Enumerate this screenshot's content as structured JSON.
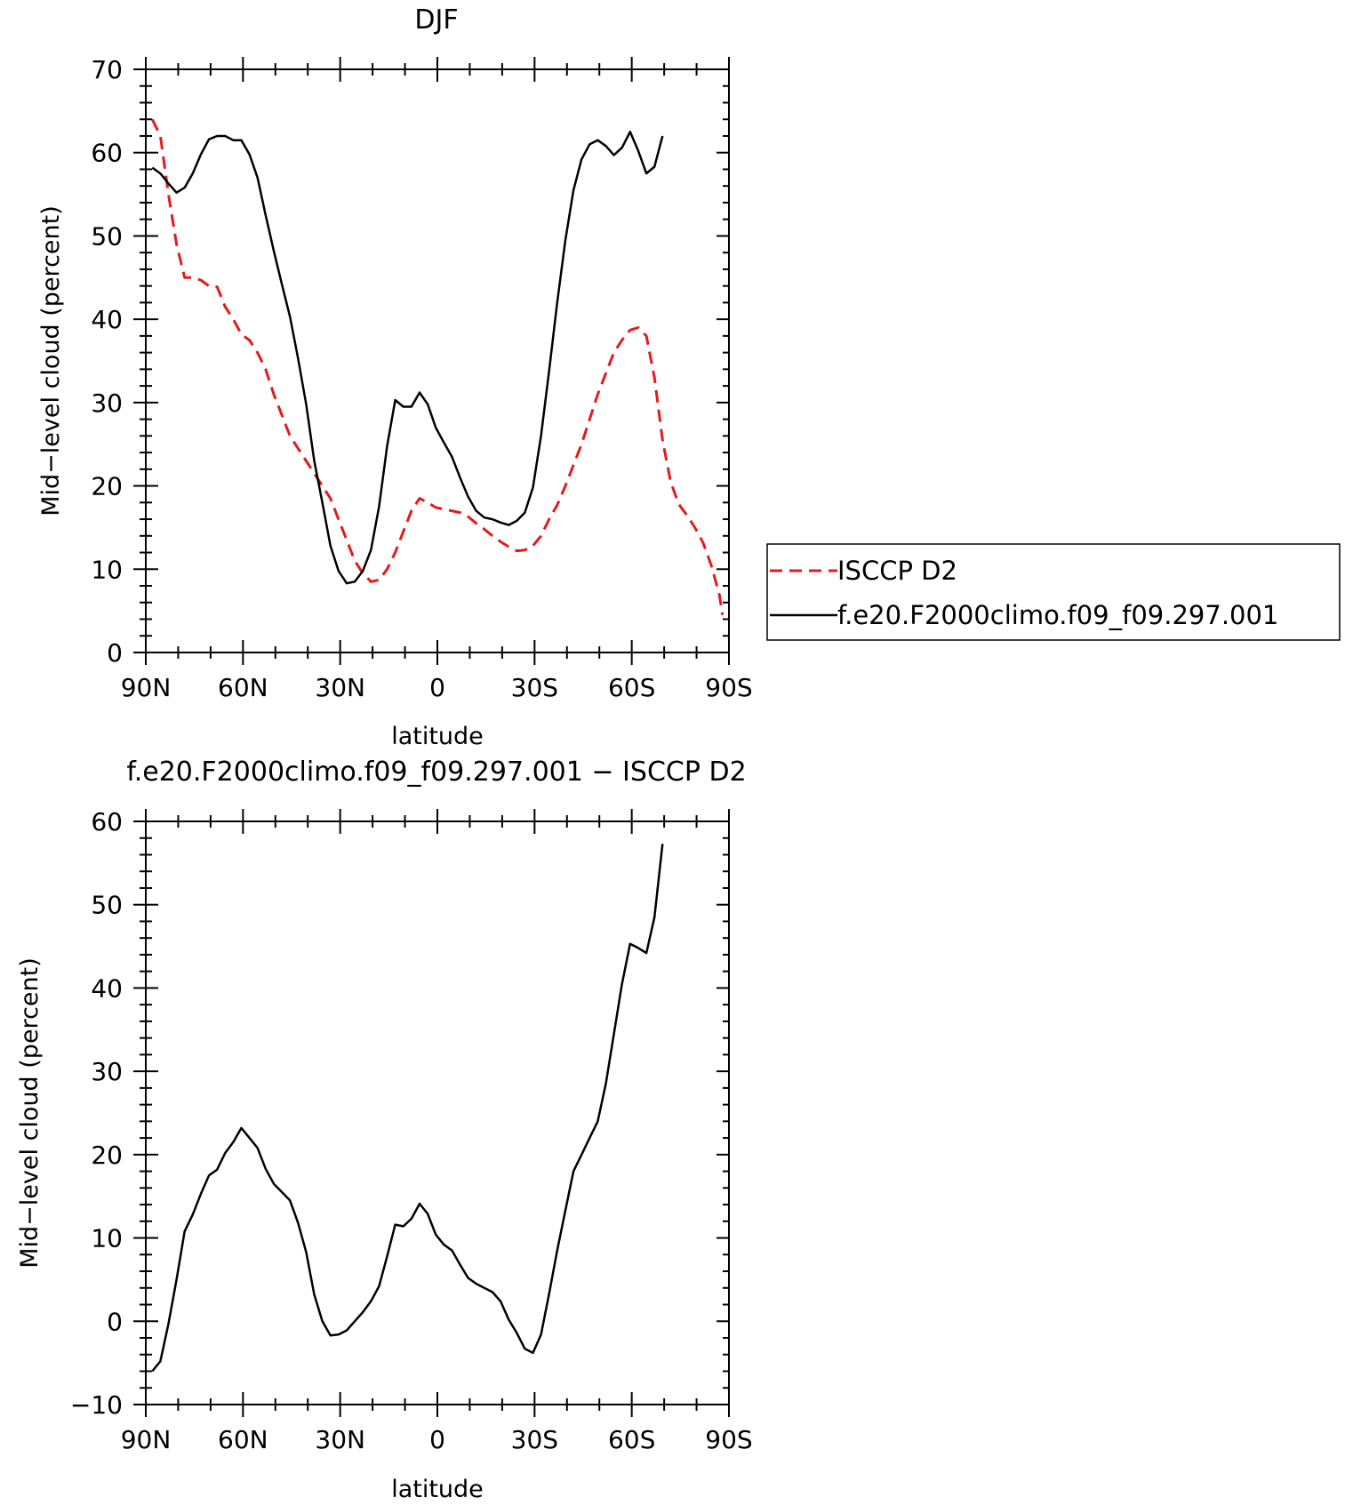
{
  "legend": {
    "entries": [
      {
        "label": "ISCCP D2",
        "color": "#e41a1c",
        "dash": true
      },
      {
        "label": "f.e20.F2000climo.f09_f09.297.001",
        "color": "#000000",
        "dash": false
      }
    ],
    "placement": "right"
  },
  "chart_data": [
    {
      "type": "line",
      "title": "DJF",
      "xlabel": "latitude",
      "ylabel": "Mid−level cloud (percent)",
      "xlim": [
        90,
        -90
      ],
      "ylim": [
        0,
        70
      ],
      "xticks": [
        90,
        60,
        30,
        0,
        -30,
        -60,
        -90
      ],
      "xtick_labels": [
        "90N",
        "60N",
        "30N",
        "0",
        "30S",
        "60S",
        "90S"
      ],
      "yticks": [
        0,
        10,
        20,
        30,
        40,
        50,
        60,
        70
      ],
      "ytick_labels": [
        "0",
        "10",
        "20",
        "30",
        "40",
        "50",
        "60",
        "70"
      ],
      "grid": false,
      "series": [
        {
          "name": "ISCCP D2",
          "color": "#e41a1c",
          "dash": true,
          "points": [
            [
              88,
              64
            ],
            [
              85.5,
              62
            ],
            [
              83,
              55
            ],
            [
              80.5,
              49
            ],
            [
              78,
              45
            ],
            [
              75.5,
              45
            ],
            [
              73,
              44.7
            ],
            [
              70.5,
              44
            ],
            [
              68,
              43.9
            ],
            [
              65.5,
              41.5
            ],
            [
              63,
              40
            ],
            [
              60.5,
              38.2
            ],
            [
              58,
              37.5
            ],
            [
              55.5,
              36
            ],
            [
              53,
              34
            ],
            [
              50.5,
              31
            ],
            [
              48,
              28.5
            ],
            [
              45.5,
              26
            ],
            [
              43,
              24.5
            ],
            [
              40.5,
              23
            ],
            [
              38,
              21.5
            ],
            [
              35.5,
              20
            ],
            [
              33,
              18.5
            ],
            [
              30.5,
              16
            ],
            [
              28,
              13.5
            ],
            [
              25.5,
              11
            ],
            [
              23,
              9.5
            ],
            [
              20.5,
              8.5
            ],
            [
              18,
              8.7
            ],
            [
              15.5,
              10
            ],
            [
              13,
              12
            ],
            [
              10.5,
              14.5
            ],
            [
              8,
              17
            ],
            [
              5.5,
              18.5
            ],
            [
              3,
              18
            ],
            [
              0.5,
              17.4
            ],
            [
              -2,
              17.2
            ],
            [
              -4.5,
              17
            ],
            [
              -7,
              16.8
            ],
            [
              -9.5,
              16.3
            ],
            [
              -12,
              15.5
            ],
            [
              -14.5,
              14.8
            ],
            [
              -17,
              14
            ],
            [
              -19.5,
              13.3
            ],
            [
              -22,
              12.7
            ],
            [
              -24.5,
              12.2
            ],
            [
              -27,
              12.3
            ],
            [
              -29.5,
              12.8
            ],
            [
              -32,
              14
            ],
            [
              -34.5,
              16
            ],
            [
              -37,
              17.7
            ],
            [
              -39.5,
              20
            ],
            [
              -42,
              22.5
            ],
            [
              -44.5,
              25
            ],
            [
              -47,
              28
            ],
            [
              -49.5,
              31
            ],
            [
              -52,
              33.5
            ],
            [
              -54.5,
              36
            ],
            [
              -57,
              37.5
            ],
            [
              -59.5,
              38.7
            ],
            [
              -62,
              39
            ],
            [
              -64.5,
              38
            ],
            [
              -67,
              33
            ],
            [
              -69.5,
              25.5
            ],
            [
              -72,
              20.5
            ],
            [
              -74.5,
              17.8
            ],
            [
              -77,
              16.5
            ],
            [
              -79.5,
              15
            ],
            [
              -82,
              13.2
            ],
            [
              -84.5,
              10.5
            ],
            [
              -87,
              7
            ],
            [
              -88,
              4.5
            ]
          ]
        },
        {
          "name": "f.e20.F2000climo.f09_f09.297.001",
          "color": "#000000",
          "dash": false,
          "points": [
            [
              88,
              58.2
            ],
            [
              85.5,
              57.5
            ],
            [
              83,
              56.3
            ],
            [
              80.5,
              55.2
            ],
            [
              78,
              55.8
            ],
            [
              75.5,
              57.5
            ],
            [
              73,
              59.8
            ],
            [
              70.5,
              61.6
            ],
            [
              68,
              62
            ],
            [
              65.5,
              62
            ],
            [
              63,
              61.5
            ],
            [
              60.5,
              61.5
            ],
            [
              58,
              59.8
            ],
            [
              55.5,
              57
            ],
            [
              53,
              52.5
            ],
            [
              50.5,
              48.2
            ],
            [
              48,
              44.2
            ],
            [
              45.5,
              40.3
            ],
            [
              43,
              35.3
            ],
            [
              40.5,
              29.8
            ],
            [
              38,
              23
            ],
            [
              35.5,
              18
            ],
            [
              33,
              12.8
            ],
            [
              30.5,
              9.8
            ],
            [
              28,
              8.3
            ],
            [
              25.5,
              8.5
            ],
            [
              23,
              9.8
            ],
            [
              20.5,
              12.3
            ],
            [
              18,
              17.5
            ],
            [
              15.5,
              24.8
            ],
            [
              13,
              30.3
            ],
            [
              10.5,
              29.5
            ],
            [
              8,
              29.5
            ],
            [
              5.5,
              31.2
            ],
            [
              3,
              29.8
            ],
            [
              0.5,
              27
            ],
            [
              -2,
              25.2
            ],
            [
              -4.5,
              23.5
            ],
            [
              -7,
              21
            ],
            [
              -9.5,
              18.7
            ],
            [
              -12,
              17
            ],
            [
              -14.5,
              16.2
            ],
            [
              -17,
              16
            ],
            [
              -19.5,
              15.6
            ],
            [
              -22,
              15.3
            ],
            [
              -24.5,
              15.8
            ],
            [
              -27,
              16.8
            ],
            [
              -29.5,
              19.8
            ],
            [
              -32,
              26
            ],
            [
              -34.5,
              33.8
            ],
            [
              -37,
              42
            ],
            [
              -39.5,
              49.5
            ],
            [
              -42,
              55.5
            ],
            [
              -44.5,
              59.2
            ],
            [
              -47,
              61
            ],
            [
              -49.5,
              61.5
            ],
            [
              -52,
              60.8
            ],
            [
              -54.5,
              59.7
            ],
            [
              -57,
              60.6
            ],
            [
              -59.5,
              62.5
            ],
            [
              -62,
              60.2
            ],
            [
              -64.5,
              57.5
            ],
            [
              -67,
              58.3
            ],
            [
              -69.5,
              62
            ]
          ]
        }
      ]
    },
    {
      "type": "line",
      "title": "f.e20.F2000climo.f09_f09.297.001 − ISCCP D2",
      "xlabel": "latitude",
      "ylabel": "Mid−level cloud (percent)",
      "xlim": [
        90,
        -90
      ],
      "ylim": [
        -10,
        60
      ],
      "xticks": [
        90,
        60,
        30,
        0,
        -30,
        -60,
        -90
      ],
      "xtick_labels": [
        "90N",
        "60N",
        "30N",
        "0",
        "30S",
        "60S",
        "90S"
      ],
      "yticks": [
        -10,
        0,
        10,
        20,
        30,
        40,
        50,
        60
      ],
      "ytick_labels": [
        "−10",
        "0",
        "10",
        "20",
        "30",
        "40",
        "50",
        "60"
      ],
      "grid": false,
      "series": [
        {
          "color": "#000000",
          "dash": false,
          "points": [
            [
              88,
              -6
            ],
            [
              85.5,
              -4.8
            ],
            [
              83,
              -0.3
            ],
            [
              80.5,
              5
            ],
            [
              78,
              10.8
            ],
            [
              75.5,
              12.8
            ],
            [
              73,
              15.3
            ],
            [
              70.5,
              17.5
            ],
            [
              68,
              18.2
            ],
            [
              65.5,
              20.2
            ],
            [
              63,
              21.5
            ],
            [
              60.5,
              23.2
            ],
            [
              58,
              22
            ],
            [
              55.5,
              20.8
            ],
            [
              53,
              18.3
            ],
            [
              50.5,
              16.5
            ],
            [
              48,
              15.5
            ],
            [
              45.5,
              14.5
            ],
            [
              43,
              11.8
            ],
            [
              40.5,
              8.3
            ],
            [
              38,
              3.2
            ],
            [
              35.5,
              0
            ],
            [
              33,
              -1.7
            ],
            [
              30.5,
              -1.6
            ],
            [
              28,
              -1.1
            ],
            [
              25.5,
              0
            ],
            [
              23,
              1.1
            ],
            [
              20.5,
              2.4
            ],
            [
              18,
              4.2
            ],
            [
              15.5,
              7.8
            ],
            [
              13,
              11.6
            ],
            [
              10.5,
              11.4
            ],
            [
              8,
              12.3
            ],
            [
              5.5,
              14.1
            ],
            [
              3,
              12.9
            ],
            [
              0.5,
              10.4
            ],
            [
              -2,
              9.2
            ],
            [
              -4.5,
              8.5
            ],
            [
              -7,
              6.8
            ],
            [
              -9.5,
              5.2
            ],
            [
              -12,
              4.5
            ],
            [
              -14.5,
              4
            ],
            [
              -17,
              3.5
            ],
            [
              -19.5,
              2.4
            ],
            [
              -22,
              0.2
            ],
            [
              -24.5,
              -1.4
            ],
            [
              -27,
              -3.3
            ],
            [
              -29.5,
              -3.8
            ],
            [
              -32,
              -1.6
            ],
            [
              -34.5,
              3.3
            ],
            [
              -37,
              8.5
            ],
            [
              -39.5,
              13.3
            ],
            [
              -42,
              18
            ],
            [
              -44.5,
              20
            ],
            [
              -47,
              22
            ],
            [
              -49.5,
              24
            ],
            [
              -52,
              28.5
            ],
            [
              -54.5,
              34.5
            ],
            [
              -57,
              40.5
            ],
            [
              -59.5,
              45.3
            ],
            [
              -62,
              44.8
            ],
            [
              -64.5,
              44.2
            ],
            [
              -67,
              48.5
            ],
            [
              -69.5,
              57.3
            ]
          ]
        }
      ]
    }
  ]
}
